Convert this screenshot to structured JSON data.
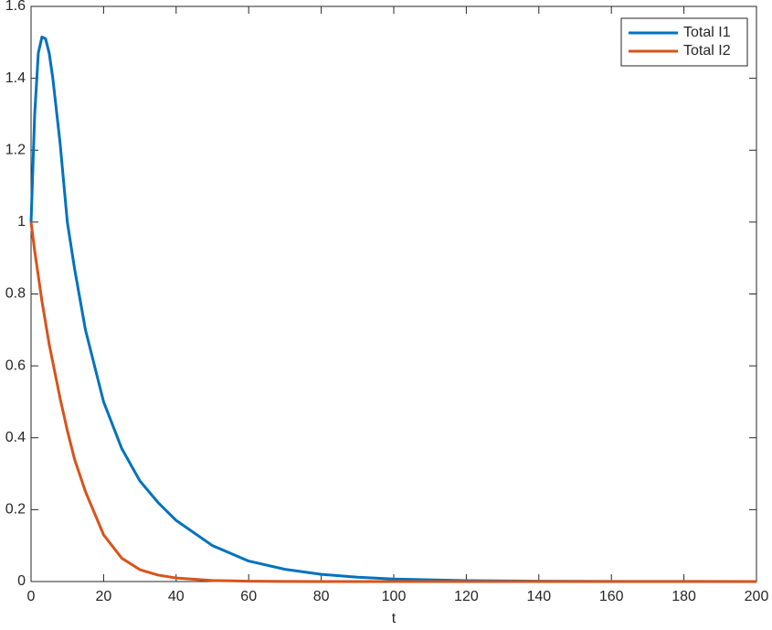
{
  "chart_data": {
    "type": "line",
    "xlabel": "t",
    "x": [
      0,
      1,
      2,
      3,
      4,
      5,
      6,
      8,
      10,
      12,
      15,
      20,
      25,
      30,
      35,
      40,
      50,
      60,
      70,
      80,
      90,
      100,
      120,
      140,
      160,
      180,
      200
    ],
    "series": [
      {
        "name": "Total I1",
        "color": "#0072bd",
        "values": [
          1,
          1.3,
          1.47,
          1.515,
          1.51,
          1.47,
          1.4,
          1.22,
          1.0,
          0.87,
          0.7,
          0.5,
          0.37,
          0.28,
          0.22,
          0.17,
          0.1,
          0.057,
          0.034,
          0.02,
          0.012,
          0.007,
          0.0025,
          0.001,
          0.0004,
          0.0002,
          0.0001
        ]
      },
      {
        "name": "Total I2",
        "color": "#d95319",
        "values": [
          1,
          0.92,
          0.85,
          0.78,
          0.72,
          0.66,
          0.61,
          0.51,
          0.42,
          0.34,
          0.25,
          0.13,
          0.065,
          0.033,
          0.018,
          0.01,
          0.003,
          0.001,
          0.0004,
          0.0001,
          0,
          0,
          0,
          0,
          0,
          0,
          0
        ]
      }
    ],
    "xlim": [
      0,
      200
    ],
    "xticks": [
      0,
      20,
      40,
      60,
      80,
      100,
      120,
      140,
      160,
      180,
      200
    ],
    "ylim": [
      0,
      1.6
    ],
    "yticks": [
      0,
      0.2,
      0.4,
      0.6,
      0.8,
      1,
      1.2,
      1.4,
      1.6
    ],
    "legend": "top-right"
  }
}
